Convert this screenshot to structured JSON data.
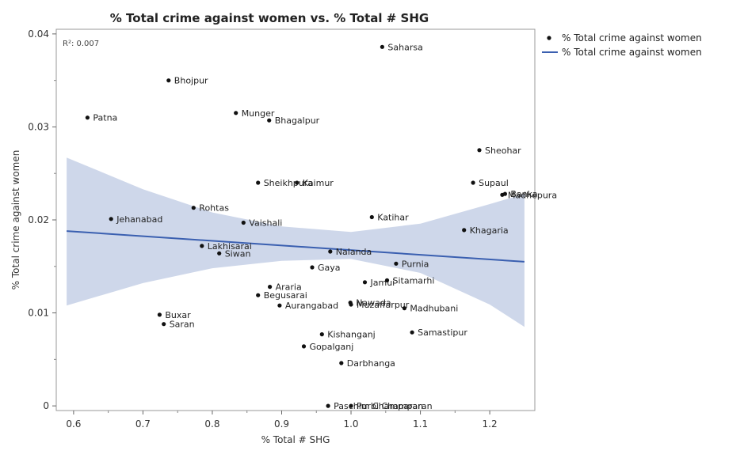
{
  "chart_data": {
    "type": "scatter",
    "title": "% Total crime against women vs. % Total # SHG",
    "xlabel": "% Total # SHG",
    "ylabel": "% Total crime against women",
    "annotation": "R²: 0.007",
    "xlim": [
      0.575,
      1.265
    ],
    "ylim": [
      -0.0005,
      0.0405
    ],
    "xticks": [
      "0.6",
      "0.7",
      "0.8",
      "0.9",
      "1.0",
      "1.1",
      "1.2"
    ],
    "xtick_values": [
      0.6,
      0.7,
      0.8,
      0.9,
      1.0,
      1.1,
      1.2
    ],
    "yticks": [
      "0",
      "0.01",
      "0.02",
      "0.03",
      "0.04"
    ],
    "ytick_values": [
      0,
      0.01,
      0.02,
      0.03,
      0.04
    ],
    "legend": {
      "position": "right",
      "entries": [
        {
          "label": "% Total crime against women",
          "symbol": "dot"
        },
        {
          "label": "% Total crime against women",
          "symbol": "line"
        }
      ]
    },
    "fit_line": {
      "x": [
        0.59,
        1.25
      ],
      "y": [
        0.0188,
        0.0155
      ]
    },
    "confidence_band": {
      "x": [
        0.59,
        0.7,
        0.8,
        0.9,
        1.0,
        1.1,
        1.2,
        1.25
      ],
      "upper": [
        0.0267,
        0.0233,
        0.0208,
        0.0193,
        0.0187,
        0.0196,
        0.0217,
        0.0228
      ],
      "lower": [
        0.0108,
        0.0132,
        0.0148,
        0.0156,
        0.0158,
        0.0143,
        0.0109,
        0.0085
      ]
    },
    "points": [
      {
        "label": "Saharsa",
        "x": 1.045,
        "y": 0.0386
      },
      {
        "label": "Bhojpur",
        "x": 0.737,
        "y": 0.035
      },
      {
        "label": "Patna",
        "x": 0.62,
        "y": 0.031
      },
      {
        "label": "Munger",
        "x": 0.834,
        "y": 0.0315
      },
      {
        "label": "Bhagalpur",
        "x": 0.882,
        "y": 0.0307
      },
      {
        "label": "Sheohar",
        "x": 1.185,
        "y": 0.0275
      },
      {
        "label": "Sheikhpura",
        "x": 0.866,
        "y": 0.024
      },
      {
        "label": "Kaimur",
        "x": 0.922,
        "y": 0.024
      },
      {
        "label": "Supaul",
        "x": 1.176,
        "y": 0.024
      },
      {
        "label": "Madhepura",
        "x": 1.218,
        "y": 0.0227
      },
      {
        "label": "Banka",
        "x": 1.222,
        "y": 0.0228
      },
      {
        "label": "Rohtas",
        "x": 0.773,
        "y": 0.0213
      },
      {
        "label": "Jehanabad",
        "x": 0.654,
        "y": 0.0201
      },
      {
        "label": "Vaishali",
        "x": 0.845,
        "y": 0.0197
      },
      {
        "label": "Katihar",
        "x": 1.03,
        "y": 0.0203
      },
      {
        "label": "Khagaria",
        "x": 1.163,
        "y": 0.0189
      },
      {
        "label": "Lakhisarai",
        "x": 0.785,
        "y": 0.0172
      },
      {
        "label": "Siwan",
        "x": 0.81,
        "y": 0.0164
      },
      {
        "label": "Nalanda",
        "x": 0.97,
        "y": 0.0166
      },
      {
        "label": "Purnia",
        "x": 1.065,
        "y": 0.0153
      },
      {
        "label": "Gaya",
        "x": 0.944,
        "y": 0.0149
      },
      {
        "label": "Jamui",
        "x": 1.02,
        "y": 0.0133
      },
      {
        "label": "Sitamarhi",
        "x": 1.052,
        "y": 0.0135
      },
      {
        "label": "Araria",
        "x": 0.883,
        "y": 0.0128
      },
      {
        "label": "Begusarai",
        "x": 0.866,
        "y": 0.0119
      },
      {
        "label": "Aurangabad",
        "x": 0.897,
        "y": 0.0108
      },
      {
        "label": "Nawada",
        "x": 0.999,
        "y": 0.0111
      },
      {
        "label": "Muzaffarpur",
        "x": 1.0,
        "y": 0.0109
      },
      {
        "label": "Madhubani",
        "x": 1.077,
        "y": 0.0105
      },
      {
        "label": "Buxar",
        "x": 0.724,
        "y": 0.0098
      },
      {
        "label": "Saran",
        "x": 0.73,
        "y": 0.0088
      },
      {
        "label": "Samastipur",
        "x": 1.088,
        "y": 0.0079
      },
      {
        "label": "Kishanganj",
        "x": 0.958,
        "y": 0.0077
      },
      {
        "label": "Gopalganj",
        "x": 0.932,
        "y": 0.0064
      },
      {
        "label": "Darbhanga",
        "x": 0.986,
        "y": 0.0046
      },
      {
        "label": "Paschim Champaran",
        "x": 0.967,
        "y": 0.0
      },
      {
        "label": "Purbi Champaran",
        "x": 1.0,
        "y": 0.0
      }
    ],
    "colors": {
      "points": "#111111",
      "fit_line": "#3a5fb0",
      "band": "#c5d0e6",
      "frame": "#999999"
    }
  }
}
